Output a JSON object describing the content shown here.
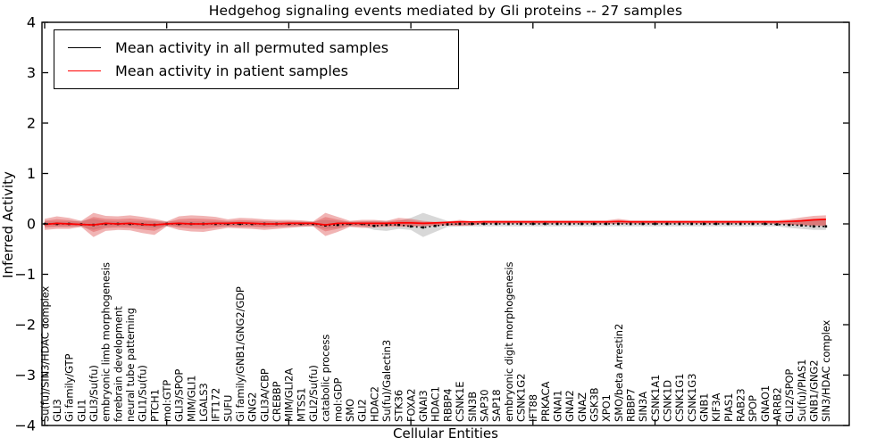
{
  "figure": {
    "title": "Hedgehog signaling events mediated by Gli proteins -- 27 samples",
    "xlabel": "Cellular Entities",
    "ylabel": "Inferred Activity",
    "legend": [
      {
        "label": "Mean activity in all permuted samples",
        "color": "#000000"
      },
      {
        "label": "Mean activity in patient samples",
        "color": "#ff0000"
      }
    ],
    "colors": {
      "permuted_line": "#000000",
      "patient_line": "#ff0000",
      "patient_band": "#dd4444",
      "permuted_band": "#999999",
      "axis": "#000000"
    }
  },
  "chart_data": {
    "type": "line",
    "title": "Hedgehog signaling events mediated by Gli proteins -- 27 samples",
    "xlabel": "Cellular Entities",
    "ylabel": "Inferred Activity",
    "ylim": [
      -4,
      4
    ],
    "yticks": [
      4,
      3,
      2,
      1,
      0,
      -1,
      -2,
      -3,
      -4
    ],
    "x_major_tick_step": 10,
    "grid": false,
    "legend_position": "upper left",
    "categories": [
      "Su(fu)/SIN3/HDAC complex",
      "GLI3",
      "Gi family/GTP",
      "GLI1",
      "GLI3/Su(fu)",
      "embryonic limb morphogenesis",
      "forebrain development",
      "neural tube patterning",
      "GLI1/Su(fu)",
      "PTCH1",
      "mol:GTP",
      "GLI3/SPOP",
      "MIM/GLI1",
      "LGALS3",
      "IFT172",
      "SUFU",
      "Gi family/GNB1/GNG2/GDP",
      "GNG2",
      "GLI3A/CBP",
      "CREBBP",
      "MIM/GLI2A",
      "MTSS1",
      "GLI2/Su(fu)",
      "catabolic process",
      "mol:GDP",
      "SMO",
      "GLI2",
      "HDAC2",
      "Su(fu)/Galectin3",
      "STK36",
      "FOXA2",
      "GNAI3",
      "HDAC1",
      "RBBP4",
      "CSNK1E",
      "SIN3B",
      "SAP30",
      "SAP18",
      "embryonic digit morphogenesis",
      "CSNK1G2",
      "IFT88",
      "PRKACA",
      "GNAI1",
      "GNAI2",
      "GNAZ",
      "GSK3B",
      "XPO1",
      "SMO/beta Arrestin2",
      "RBBP7",
      "SIN3A",
      "CSNK1A1",
      "CSNK1D",
      "CSNK1G1",
      "CSNK1G3",
      "GNB1",
      "KIF3A",
      "PIAS1",
      "RAB23",
      "SPOP",
      "GNAO1",
      "ARRB2",
      "GLI2/SPOP",
      "Su(fu)/PIAS1",
      "GNB1/GNG2",
      "SIN3/HDAC complex"
    ],
    "series": [
      {
        "name": "Mean activity in all permuted samples",
        "color": "#000000",
        "style": "dotted-with-markers",
        "values": [
          0,
          0,
          0,
          -0.01,
          -0.02,
          0,
          0,
          0,
          -0.01,
          -0.02,
          0,
          0,
          0,
          0,
          0,
          0,
          0,
          0,
          0,
          0,
          0,
          0,
          0,
          -0.03,
          -0.02,
          0,
          0,
          -0.04,
          -0.02,
          -0.02,
          -0.05,
          -0.07,
          -0.04,
          -0.01,
          0,
          0,
          0,
          0,
          0,
          0,
          0,
          0,
          0,
          0,
          0,
          0,
          0,
          0,
          0,
          0,
          0,
          0,
          0,
          0,
          0,
          0,
          0,
          0,
          0,
          0,
          -0.01,
          -0.02,
          -0.03,
          -0.05,
          -0.05
        ]
      },
      {
        "name": "Mean activity in patient samples",
        "color": "#ff0000",
        "style": "solid",
        "values": [
          -0.01,
          0.01,
          0,
          -0.01,
          -0.02,
          0.01,
          0,
          0.01,
          -0.01,
          -0.02,
          0,
          0.01,
          0,
          0,
          0.01,
          0.01,
          0.02,
          0.01,
          0,
          0,
          0.01,
          0.01,
          0.01,
          -0.02,
          0.01,
          0.01,
          0.01,
          0.01,
          0.01,
          0.02,
          0.02,
          0.01,
          0.02,
          0.03,
          0.04,
          0.04,
          0.04,
          0.04,
          0.04,
          0.04,
          0.04,
          0.04,
          0.04,
          0.04,
          0.04,
          0.04,
          0.04,
          0.05,
          0.04,
          0.04,
          0.04,
          0.04,
          0.04,
          0.04,
          0.04,
          0.04,
          0.04,
          0.04,
          0.04,
          0.04,
          0.04,
          0.05,
          0.06,
          0.08,
          0.09
        ]
      }
    ],
    "bands": [
      {
        "name": "permuted samples spread",
        "color": "#999999",
        "upper": [
          0.05,
          0.05,
          0.05,
          0.06,
          0.1,
          0.06,
          0.05,
          0.05,
          0.05,
          0.06,
          0.05,
          0.05,
          0.05,
          0.05,
          0.05,
          0.05,
          0.05,
          0.05,
          0.05,
          0.05,
          0.05,
          0.05,
          0.05,
          0.08,
          0.06,
          0.05,
          0.05,
          0.06,
          0.06,
          0.06,
          0.12,
          0.22,
          0.14,
          0.06,
          0.05,
          0.05,
          0.05,
          0.05,
          0.05,
          0.05,
          0.05,
          0.05,
          0.05,
          0.05,
          0.05,
          0.05,
          0.05,
          0.05,
          0.05,
          0.05,
          0.05,
          0.05,
          0.05,
          0.05,
          0.05,
          0.05,
          0.05,
          0.05,
          0.05,
          0.05,
          0.05,
          0.06,
          0.07,
          0.08,
          0.08
        ],
        "lower": [
          -0.05,
          -0.05,
          -0.05,
          -0.06,
          -0.12,
          -0.06,
          -0.05,
          -0.05,
          -0.06,
          -0.08,
          -0.05,
          -0.05,
          -0.05,
          -0.05,
          -0.05,
          -0.05,
          -0.05,
          -0.05,
          -0.05,
          -0.05,
          -0.05,
          -0.05,
          -0.05,
          -0.1,
          -0.08,
          -0.05,
          -0.05,
          -0.12,
          -0.14,
          -0.1,
          -0.12,
          -0.26,
          -0.16,
          -0.06,
          -0.05,
          -0.05,
          -0.05,
          -0.05,
          -0.05,
          -0.05,
          -0.05,
          -0.05,
          -0.05,
          -0.05,
          -0.05,
          -0.05,
          -0.05,
          -0.05,
          -0.05,
          -0.05,
          -0.05,
          -0.05,
          -0.05,
          -0.05,
          -0.05,
          -0.05,
          -0.05,
          -0.05,
          -0.05,
          -0.05,
          -0.05,
          -0.08,
          -0.1,
          -0.12,
          -0.12
        ]
      },
      {
        "name": "patient samples spread",
        "color": "#dd4444",
        "upper": [
          0.1,
          0.15,
          0.12,
          0.06,
          0.22,
          0.16,
          0.15,
          0.17,
          0.14,
          0.1,
          0.05,
          0.15,
          0.17,
          0.16,
          0.14,
          0.09,
          0.12,
          0.11,
          0.09,
          0.08,
          0.08,
          0.07,
          0.05,
          0.22,
          0.14,
          0.06,
          0.08,
          0.08,
          0.06,
          0.12,
          0.1,
          0.06,
          0.04,
          0.05,
          0.08,
          0.05,
          0.07,
          0.07,
          0.07,
          0.07,
          0.07,
          0.07,
          0.07,
          0.07,
          0.07,
          0.07,
          0.07,
          0.1,
          0.07,
          0.07,
          0.07,
          0.07,
          0.07,
          0.07,
          0.07,
          0.07,
          0.07,
          0.07,
          0.07,
          0.07,
          0.07,
          0.09,
          0.13,
          0.16,
          0.17
        ],
        "lower": [
          -0.12,
          -0.1,
          -0.1,
          -0.06,
          -0.26,
          -0.14,
          -0.12,
          -0.13,
          -0.18,
          -0.22,
          -0.05,
          -0.12,
          -0.15,
          -0.16,
          -0.12,
          -0.08,
          -0.09,
          -0.1,
          -0.12,
          -0.1,
          -0.08,
          -0.06,
          -0.05,
          -0.24,
          -0.16,
          -0.06,
          -0.08,
          -0.07,
          -0.06,
          -0.06,
          -0.06,
          -0.05,
          -0.04,
          -0.03,
          -0.04,
          -0.03,
          0.01,
          0.01,
          0.01,
          0.01,
          0.01,
          0.01,
          0.01,
          0.01,
          0.01,
          0.01,
          0.01,
          0.0,
          0.01,
          0.01,
          0.01,
          0.01,
          0.01,
          0.01,
          0.01,
          0.01,
          0.01,
          0.01,
          0.01,
          0.01,
          0.0,
          -0.02,
          -0.03,
          -0.04,
          -0.05
        ]
      }
    ]
  }
}
